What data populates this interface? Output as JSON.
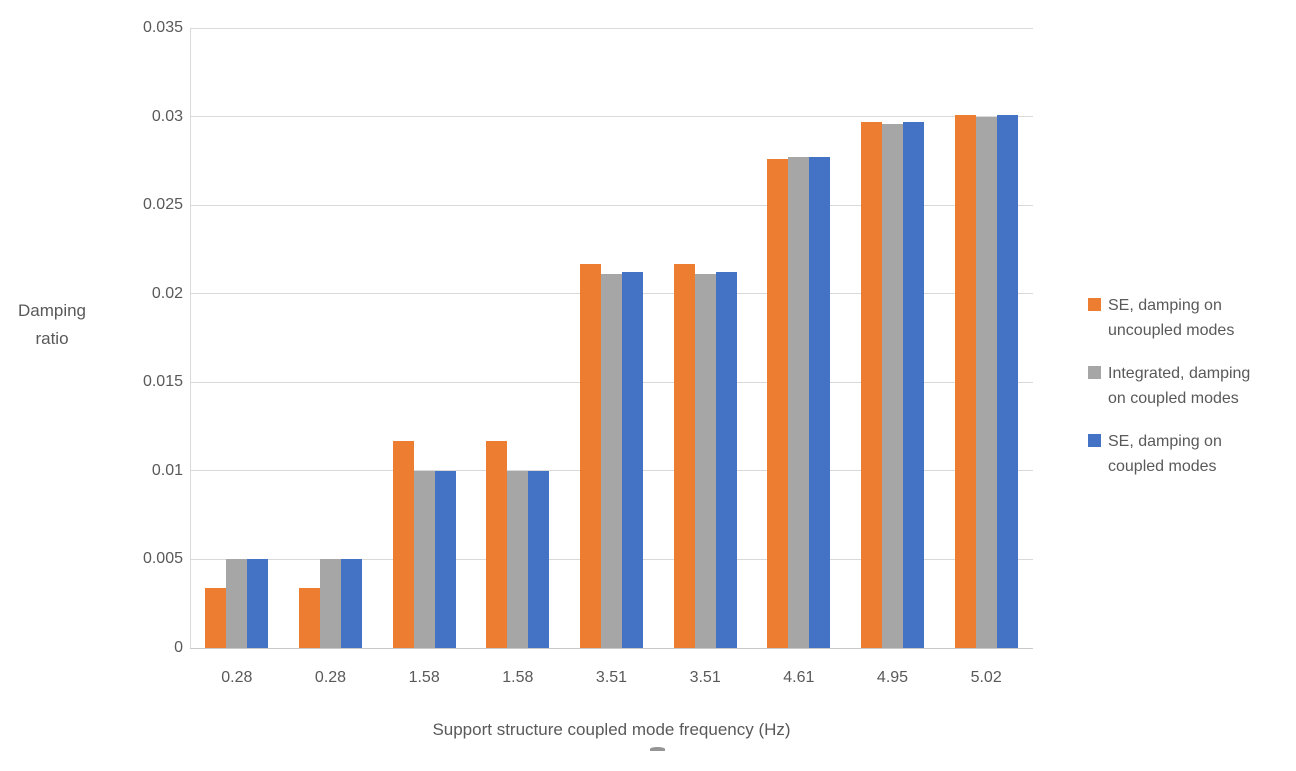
{
  "chart_data": {
    "type": "bar",
    "title": "",
    "xlabel": "Support structure coupled mode frequency (Hz)",
    "ylabel": "Damping ratio",
    "ylabel_lines": [
      "Damping",
      "ratio"
    ],
    "categories": [
      "0.28",
      "0.28",
      "1.58",
      "1.58",
      "3.51",
      "3.51",
      "4.61",
      "4.95",
      "5.02"
    ],
    "series": [
      {
        "name": "SE, damping on uncoupled modes",
        "legend_lines": [
          "SE, damping on",
          "uncoupled modes"
        ],
        "color": "#ED7D31",
        "values": [
          0.0034,
          0.0034,
          0.0117,
          0.0117,
          0.0217,
          0.0217,
          0.0276,
          0.0297,
          0.0301
        ]
      },
      {
        "name": "Integrated, damping on coupled modes",
        "legend_lines": [
          "Integrated, damping",
          "on coupled modes"
        ],
        "color": "#A6A6A6",
        "values": [
          0.005,
          0.005,
          0.01,
          0.01,
          0.0211,
          0.0211,
          0.0277,
          0.0296,
          0.03
        ]
      },
      {
        "name": "SE, damping on coupled modes",
        "legend_lines": [
          "SE, damping on",
          "coupled modes"
        ],
        "color": "#4472C4",
        "values": [
          0.005,
          0.005,
          0.01,
          0.01,
          0.0212,
          0.0212,
          0.0277,
          0.0297,
          0.0301
        ]
      }
    ],
    "ylim": [
      0,
      0.035
    ],
    "yticks": [
      0,
      0.005,
      0.01,
      0.015,
      0.02,
      0.025,
      0.03,
      0.035
    ],
    "ytick_labels": [
      "0",
      "0.005",
      "0.01",
      "0.015",
      "0.02",
      "0.025",
      "0.03",
      "0.035"
    ],
    "grid": true,
    "legend_position": "right",
    "colors": {
      "text": "#595959",
      "gridline": "#D9D9D9",
      "axis_line": "#C9C9C9",
      "background": "#FFFFFF"
    }
  }
}
